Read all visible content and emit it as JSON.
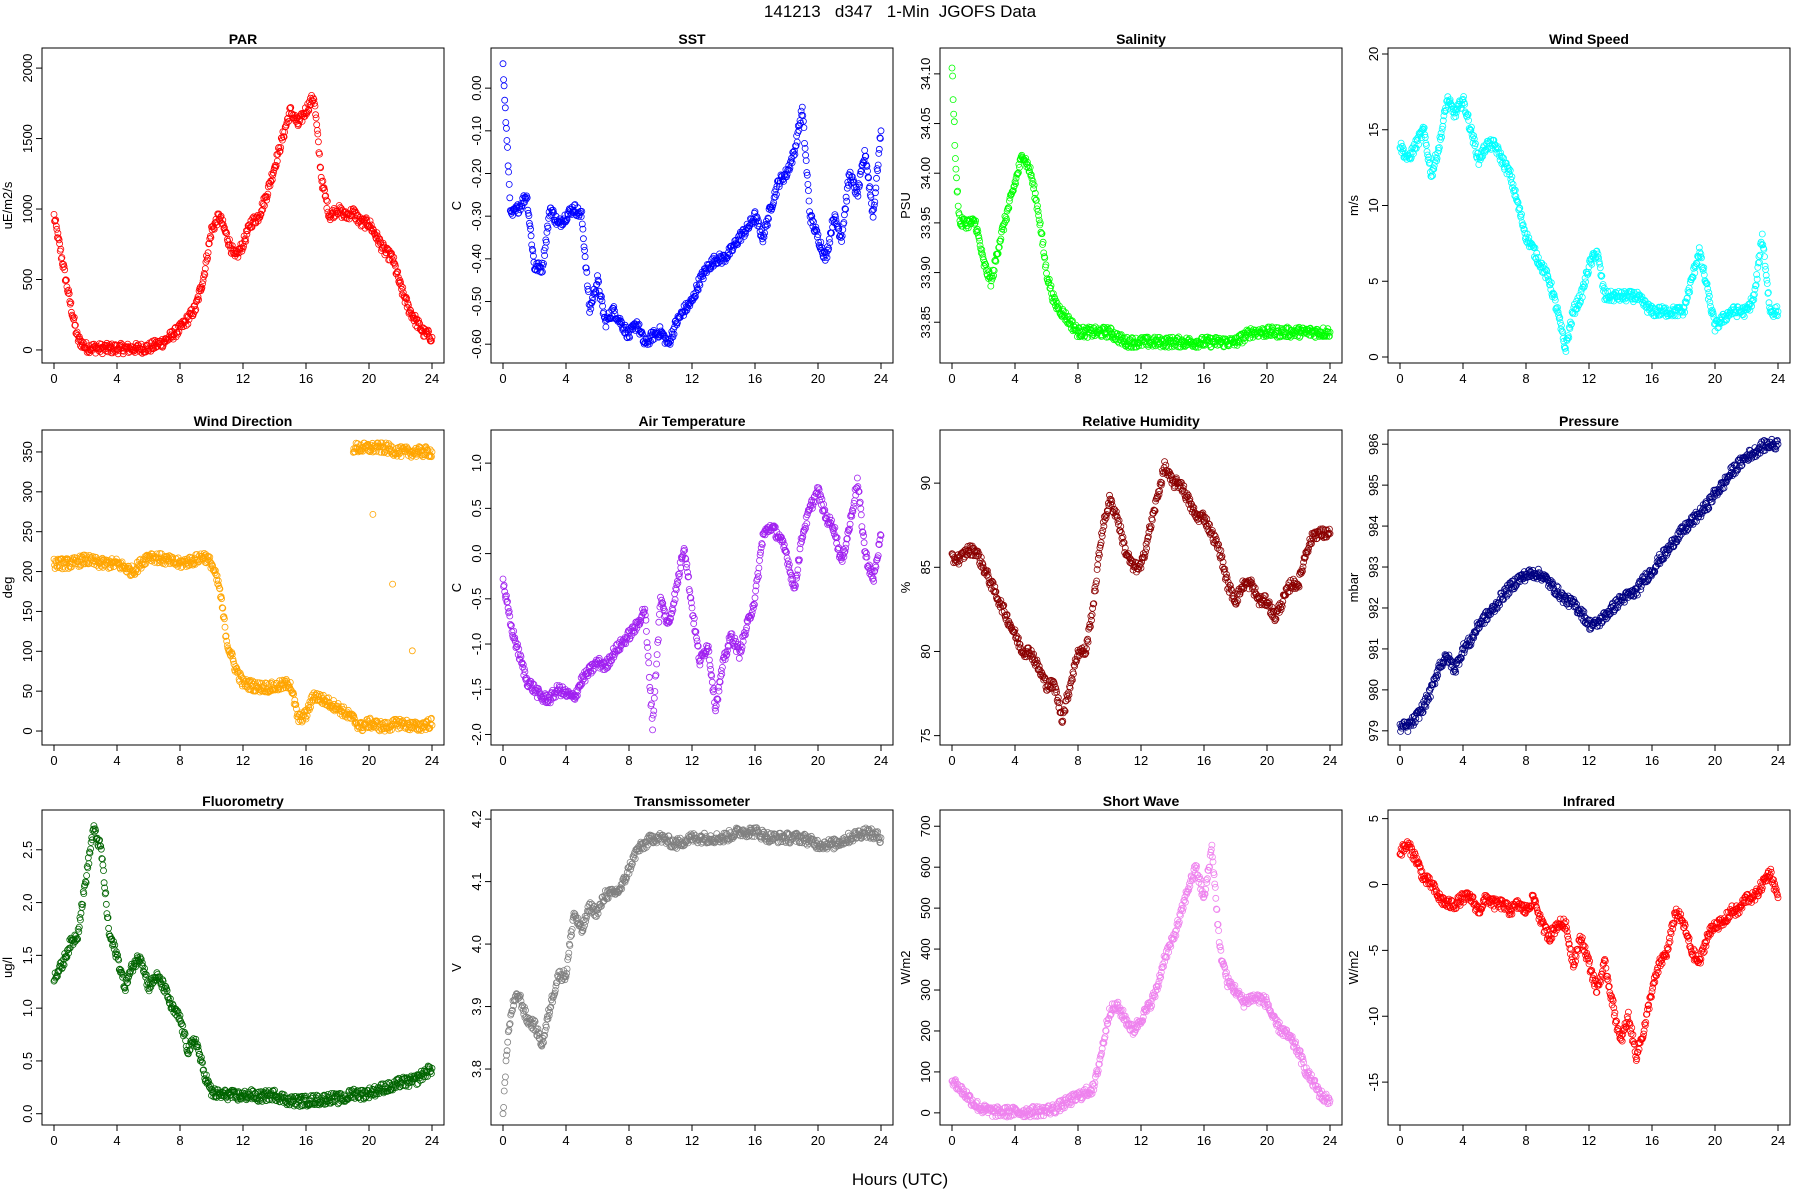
{
  "page_title": "141213   d347   1-Min  JGOFS Data",
  "xaxis_title": "Hours (UTC)",
  "chart_data": [
    {
      "type": "scatter",
      "title": "PAR",
      "ylabel": "uE/m2/s",
      "color": "#ff0000",
      "xlim": [
        0,
        24
      ],
      "ylim": [
        -50,
        2100
      ],
      "xticks": [
        0,
        4,
        8,
        12,
        16,
        20,
        24
      ],
      "yticks": [
        0,
        500,
        1000,
        1500,
        2000
      ],
      "x": [
        0,
        0.5,
        1,
        1.5,
        2,
        3,
        4,
        5,
        6,
        7,
        8,
        8.5,
        9,
        9.5,
        10,
        10.5,
        11,
        11.5,
        12,
        12.5,
        13,
        13.5,
        14,
        14.5,
        15,
        15.5,
        16,
        16.5,
        17,
        17.5,
        18,
        18.5,
        19,
        19.5,
        20,
        20.5,
        21,
        21.5,
        22,
        22.5,
        23,
        23.5,
        24
      ],
      "y": [
        950,
        650,
        350,
        80,
        20,
        10,
        10,
        10,
        15,
        60,
        150,
        220,
        300,
        520,
        850,
        950,
        800,
        650,
        750,
        900,
        950,
        1100,
        1300,
        1500,
        1700,
        1600,
        1700,
        1800,
        1200,
        950,
        1000,
        950,
        980,
        900,
        900,
        800,
        700,
        650,
        450,
        300,
        200,
        120,
        90
      ]
    },
    {
      "type": "scatter",
      "title": "SST",
      "ylabel": "C",
      "color": "#0000ff",
      "xlim": [
        0,
        24
      ],
      "ylim": [
        -0.63,
        0.08
      ],
      "xticks": [
        0,
        4,
        8,
        12,
        16,
        20,
        24
      ],
      "yticks": [
        -0.6,
        -0.5,
        -0.4,
        -0.3,
        -0.2,
        -0.1,
        0.0
      ],
      "x": [
        0,
        0.5,
        1,
        1.5,
        2,
        2.5,
        3,
        3.5,
        4,
        4.5,
        5,
        5.5,
        6,
        6.5,
        7,
        7.5,
        8,
        8.5,
        9,
        9.5,
        10,
        10.5,
        11,
        11.5,
        12,
        12.5,
        13,
        13.5,
        14,
        14.5,
        15,
        15.5,
        16,
        16.5,
        17,
        17.5,
        18,
        18.5,
        19,
        19.5,
        20,
        20.5,
        21,
        21.5,
        22,
        22.5,
        23,
        23.5,
        24
      ],
      "y": [
        0.05,
        -0.3,
        -0.28,
        -0.25,
        -0.42,
        -0.42,
        -0.28,
        -0.32,
        -0.3,
        -0.28,
        -0.3,
        -0.52,
        -0.45,
        -0.55,
        -0.52,
        -0.55,
        -0.58,
        -0.55,
        -0.6,
        -0.58,
        -0.57,
        -0.6,
        -0.55,
        -0.52,
        -0.5,
        -0.45,
        -0.42,
        -0.4,
        -0.4,
        -0.38,
        -0.35,
        -0.33,
        -0.3,
        -0.35,
        -0.28,
        -0.22,
        -0.2,
        -0.15,
        -0.05,
        -0.3,
        -0.35,
        -0.4,
        -0.3,
        -0.35,
        -0.2,
        -0.25,
        -0.15,
        -0.3,
        -0.1
      ]
    },
    {
      "type": "scatter",
      "title": "Salinity",
      "ylabel": "PSU",
      "color": "#00ff00",
      "xlim": [
        0,
        24
      ],
      "ylim": [
        33.815,
        34.12
      ],
      "xticks": [
        0,
        4,
        8,
        12,
        16,
        20,
        24
      ],
      "yticks": [
        33.85,
        33.9,
        33.95,
        34.0,
        34.05,
        34.1
      ],
      "x": [
        0,
        0.25,
        0.5,
        1,
        1.5,
        2,
        2.5,
        3,
        3.5,
        4,
        4.5,
        5,
        5.5,
        6,
        6.5,
        7,
        7.5,
        8,
        9,
        10,
        11,
        12,
        13,
        14,
        15,
        16,
        17,
        18,
        19,
        20,
        21,
        22,
        23,
        24
      ],
      "y": [
        34.11,
        34.0,
        33.95,
        33.95,
        33.95,
        33.91,
        33.89,
        33.93,
        33.96,
        33.99,
        34.02,
        34.0,
        33.96,
        33.9,
        33.87,
        33.86,
        33.85,
        33.84,
        33.84,
        33.84,
        33.83,
        33.83,
        33.83,
        33.83,
        33.83,
        33.83,
        33.83,
        33.83,
        33.84,
        33.84,
        33.84,
        33.84,
        33.84,
        33.84
      ]
    },
    {
      "type": "scatter",
      "title": "Wind Speed",
      "ylabel": "m/s",
      "color": "#00ffff",
      "xlim": [
        0,
        24
      ],
      "ylim": [
        0,
        20
      ],
      "xticks": [
        0,
        4,
        8,
        12,
        16,
        20,
        24
      ],
      "yticks": [
        0,
        5,
        10,
        15,
        20
      ],
      "x": [
        0,
        0.5,
        1,
        1.5,
        2,
        2.5,
        3,
        3.5,
        4,
        4.5,
        5,
        5.5,
        6,
        6.5,
        7,
        7.5,
        8,
        8.5,
        9,
        9.5,
        10,
        10.5,
        11,
        11.5,
        12,
        12.5,
        13,
        14,
        15,
        16,
        17,
        18,
        19,
        20,
        21,
        22,
        22.5,
        23,
        23.5,
        24
      ],
      "y": [
        14,
        13,
        14,
        15,
        12,
        14,
        17,
        16,
        17,
        15,
        13,
        14,
        14,
        13,
        12,
        10,
        8,
        7,
        6,
        5,
        3,
        0.5,
        3,
        4,
        6,
        7,
        4,
        4,
        4,
        3,
        3,
        3,
        7,
        2,
        3,
        3,
        4,
        8,
        3,
        3
      ]
    },
    {
      "type": "scatter",
      "title": "Wind Direction",
      "ylabel": "deg",
      "color": "#ffa500",
      "xlim": [
        0,
        24
      ],
      "ylim": [
        -10,
        370
      ],
      "xticks": [
        0,
        4,
        8,
        12,
        16,
        20,
        24
      ],
      "yticks": [
        0,
        50,
        100,
        150,
        200,
        250,
        300,
        350
      ],
      "x": [
        0,
        1,
        2,
        3,
        4,
        5,
        6,
        7,
        8,
        9,
        9.5,
        10,
        10.5,
        11,
        11.5,
        12,
        13,
        14,
        15,
        15.5,
        16,
        16.5,
        17,
        18,
        19,
        19.5,
        20,
        21,
        22,
        23,
        24,
        19,
        20,
        21,
        22,
        23,
        24
      ],
      "y": [
        210,
        210,
        215,
        210,
        210,
        200,
        220,
        215,
        210,
        215,
        220,
        210,
        180,
        110,
        80,
        60,
        55,
        55,
        60,
        15,
        20,
        45,
        40,
        30,
        15,
        5,
        10,
        5,
        10,
        5,
        10,
        355,
        355,
        355,
        350,
        350,
        350
      ]
    },
    {
      "type": "scatter",
      "title": "Air Temperature",
      "ylabel": "C",
      "color": "#a020f0",
      "xlim": [
        0,
        24
      ],
      "ylim": [
        -2.05,
        1.3
      ],
      "xticks": [
        0,
        4,
        8,
        12,
        16,
        20,
        24
      ],
      "yticks": [
        -2.0,
        -1.5,
        -1.0,
        -0.5,
        0.0,
        0.5,
        1.0
      ],
      "x": [
        0,
        0.5,
        1,
        1.5,
        2,
        2.5,
        3,
        3.5,
        4,
        4.5,
        5,
        5.5,
        6,
        6.5,
        7,
        7.5,
        8,
        8.5,
        9,
        9.5,
        10,
        10.5,
        11,
        11.5,
        12,
        12.5,
        13,
        13.5,
        14,
        14.5,
        15,
        15.5,
        16,
        16.5,
        17,
        17.5,
        18,
        18.5,
        19,
        19.5,
        20,
        20.5,
        21,
        21.5,
        22,
        22.5,
        23,
        23.5,
        24
      ],
      "y": [
        -0.3,
        -0.8,
        -1.1,
        -1.4,
        -1.5,
        -1.6,
        -1.6,
        -1.5,
        -1.55,
        -1.6,
        -1.4,
        -1.3,
        -1.2,
        -1.25,
        -1.1,
        -1.0,
        -0.9,
        -0.8,
        -0.6,
        -1.9,
        -0.5,
        -0.8,
        -0.4,
        0.1,
        -0.6,
        -1.2,
        -1.0,
        -1.7,
        -1.2,
        -0.9,
        -1.1,
        -0.8,
        -0.5,
        0.2,
        0.3,
        0.2,
        0.0,
        -0.4,
        0.2,
        0.5,
        0.7,
        0.4,
        0.3,
        -0.1,
        0.3,
        0.8,
        0.0,
        -0.3,
        0.2
      ]
    },
    {
      "type": "scatter",
      "title": "Relative Humidity",
      "ylabel": "%",
      "color": "#8b0000",
      "xlim": [
        0,
        24
      ],
      "ylim": [
        74.8,
        92.8
      ],
      "xticks": [
        0,
        4,
        8,
        12,
        16,
        20,
        24
      ],
      "yticks": [
        75,
        80,
        85,
        90
      ],
      "x": [
        0,
        0.5,
        1,
        1.5,
        2,
        2.5,
        3,
        3.5,
        4,
        4.5,
        5,
        5.5,
        6,
        6.5,
        7,
        7.5,
        8,
        8.5,
        9,
        9.5,
        10,
        10.5,
        11,
        11.5,
        12,
        12.5,
        13,
        13.5,
        14,
        14.5,
        15,
        15.5,
        16,
        16.5,
        17,
        17.5,
        18,
        18.5,
        19,
        19.5,
        20,
        20.5,
        21,
        21.5,
        22,
        22.5,
        23,
        23.5,
        24
      ],
      "y": [
        85.5,
        85.5,
        86,
        86,
        85,
        84,
        83,
        82,
        81,
        80,
        80,
        79,
        78,
        78,
        76,
        78,
        80,
        80,
        83,
        87,
        89,
        88,
        86,
        85,
        85,
        87,
        89,
        91,
        90,
        90,
        89,
        88,
        88,
        87,
        86,
        84,
        83,
        84,
        84,
        83,
        83,
        82,
        83,
        84,
        84,
        86,
        87,
        87,
        87
      ]
    },
    {
      "type": "scatter",
      "title": "Pressure",
      "ylabel": "mbar",
      "color": "#000080",
      "xlim": [
        0,
        24
      ],
      "ylim": [
        978.8,
        986.2
      ],
      "xticks": [
        0,
        4,
        8,
        12,
        16,
        20,
        24
      ],
      "yticks": [
        979,
        980,
        981,
        982,
        983,
        984,
        985,
        986
      ],
      "x": [
        0,
        0.5,
        1,
        1.5,
        2,
        2.5,
        3,
        3.5,
        4,
        4.5,
        5,
        5.5,
        6,
        6.5,
        7,
        7.5,
        8,
        8.5,
        9,
        9.5,
        10,
        10.5,
        11,
        11.5,
        12,
        12.5,
        13,
        13.5,
        14,
        14.5,
        15,
        15.5,
        16,
        16.5,
        17,
        17.5,
        18,
        18.5,
        19,
        19.5,
        20,
        20.5,
        21,
        21.5,
        22,
        22.5,
        23,
        23.5,
        24
      ],
      "y": [
        979.1,
        979.1,
        979.3,
        979.6,
        980.0,
        980.6,
        980.8,
        980.5,
        981.0,
        981.2,
        981.6,
        981.8,
        982.0,
        982.3,
        982.5,
        982.7,
        982.8,
        982.85,
        982.8,
        982.6,
        982.4,
        982.2,
        982.1,
        981.9,
        981.6,
        981.6,
        981.8,
        982.0,
        982.2,
        982.3,
        982.4,
        982.7,
        982.9,
        983.2,
        983.4,
        983.7,
        983.9,
        984.1,
        984.3,
        984.5,
        984.8,
        985.0,
        985.3,
        985.5,
        985.7,
        985.8,
        985.95,
        986.0,
        986.0
      ]
    },
    {
      "type": "scatter",
      "title": "Fluorometry",
      "ylabel": "ug/l",
      "color": "#006400",
      "xlim": [
        0,
        24
      ],
      "ylim": [
        -0.05,
        2.82
      ],
      "xticks": [
        0,
        4,
        8,
        12,
        16,
        20,
        24
      ],
      "yticks": [
        0.0,
        0.5,
        1.0,
        1.5,
        2.0,
        2.5
      ],
      "x": [
        0,
        0.5,
        1,
        1.5,
        2,
        2.5,
        3,
        3.5,
        4,
        4.5,
        5,
        5.5,
        6,
        6.5,
        7,
        7.5,
        8,
        8.5,
        9,
        9.5,
        10,
        10.5,
        11,
        11.5,
        12,
        12.5,
        13,
        13.5,
        14,
        14.5,
        15,
        15.5,
        16,
        16.5,
        17,
        17.5,
        18,
        18.5,
        19,
        19.5,
        20,
        20.5,
        21,
        21.5,
        22,
        22.5,
        23,
        23.5,
        24
      ],
      "y": [
        1.3,
        1.4,
        1.6,
        1.7,
        2.2,
        2.7,
        2.5,
        1.7,
        1.5,
        1.2,
        1.4,
        1.5,
        1.2,
        1.3,
        1.2,
        1.0,
        0.9,
        0.6,
        0.7,
        0.4,
        0.2,
        0.18,
        0.18,
        0.17,
        0.17,
        0.18,
        0.16,
        0.17,
        0.18,
        0.15,
        0.12,
        0.12,
        0.12,
        0.13,
        0.13,
        0.15,
        0.14,
        0.15,
        0.2,
        0.18,
        0.2,
        0.22,
        0.25,
        0.25,
        0.3,
        0.3,
        0.32,
        0.38,
        0.43
      ]
    },
    {
      "type": "scatter",
      "title": "Transmissometer",
      "ylabel": "V",
      "color": "#808080",
      "xlim": [
        0,
        24
      ],
      "ylim": [
        3.72,
        4.205
      ],
      "xticks": [
        0,
        4,
        8,
        12,
        16,
        20,
        24
      ],
      "yticks": [
        3.8,
        3.9,
        4.0,
        4.1,
        4.2
      ],
      "x": [
        0,
        0.3,
        0.6,
        1,
        1.5,
        2,
        2.5,
        3,
        3.5,
        4,
        4.5,
        5,
        5.5,
        6,
        6.5,
        7,
        7.5,
        8,
        8.5,
        9,
        9.5,
        10,
        11,
        12,
        13,
        14,
        15,
        16,
        17,
        18,
        19,
        20,
        21,
        22,
        23,
        24
      ],
      "y": [
        3.73,
        3.85,
        3.9,
        3.92,
        3.88,
        3.87,
        3.84,
        3.9,
        3.95,
        3.95,
        4.05,
        4.02,
        4.06,
        4.05,
        4.08,
        4.08,
        4.09,
        4.12,
        4.15,
        4.16,
        4.17,
        4.17,
        4.16,
        4.17,
        4.17,
        4.17,
        4.18,
        4.18,
        4.17,
        4.17,
        4.17,
        4.16,
        4.16,
        4.17,
        4.18,
        4.17
      ]
    },
    {
      "type": "scatter",
      "title": "Short Wave",
      "ylabel": "W/m2",
      "color": "#ee82ee",
      "xlim": [
        0,
        24
      ],
      "ylim": [
        -15,
        725
      ],
      "xticks": [
        0,
        4,
        8,
        12,
        16,
        20,
        24
      ],
      "yticks": [
        0,
        100,
        200,
        300,
        400,
        500,
        600,
        700
      ],
      "x": [
        0,
        0.5,
        1,
        1.5,
        2,
        2.5,
        3,
        3.5,
        4,
        4.5,
        5,
        5.5,
        6,
        6.5,
        7,
        7.5,
        8,
        8.5,
        9,
        9.5,
        10,
        10.5,
        11,
        11.5,
        12,
        12.5,
        13,
        13.5,
        14,
        14.5,
        15,
        15.5,
        16,
        16.5,
        17,
        17.5,
        18,
        18.5,
        19,
        19.5,
        20,
        20.5,
        21,
        21.5,
        22,
        22.5,
        23,
        23.5,
        24
      ],
      "y": [
        80,
        60,
        40,
        20,
        8,
        3,
        2,
        2,
        2,
        2,
        3,
        4,
        6,
        10,
        20,
        30,
        40,
        50,
        60,
        150,
        250,
        260,
        230,
        200,
        230,
        260,
        300,
        380,
        420,
        480,
        550,
        600,
        520,
        650,
        400,
        320,
        300,
        270,
        280,
        280,
        270,
        220,
        200,
        180,
        150,
        100,
        70,
        40,
        30
      ]
    },
    {
      "type": "scatter",
      "title": "Infrared",
      "ylabel": "W/m2",
      "color": "#ff0000",
      "xlim": [
        0,
        24
      ],
      "ylim": [
        -17.8,
        5.2
      ],
      "xticks": [
        0,
        4,
        8,
        12,
        16,
        20,
        24
      ],
      "yticks": [
        -15,
        -10,
        -5,
        0,
        5
      ],
      "x": [
        0,
        0.5,
        1,
        1.5,
        2,
        2.5,
        3,
        3.5,
        4,
        4.5,
        5,
        5.5,
        6,
        6.5,
        7,
        7.5,
        8,
        8.5,
        9,
        9.5,
        10,
        10.5,
        11,
        11.5,
        12,
        12.5,
        13,
        13.5,
        14,
        14.5,
        15,
        15.5,
        16,
        16.5,
        17,
        17.5,
        18,
        18.5,
        19,
        19.5,
        20,
        20.5,
        21,
        21.5,
        22,
        22.5,
        23,
        23.5,
        24
      ],
      "y": [
        2.5,
        3.0,
        2.0,
        0.5,
        0,
        -1,
        -1.5,
        -1.5,
        -1,
        -1,
        -2,
        -1,
        -1.5,
        -1.5,
        -2,
        -1.5,
        -2,
        -1,
        -3,
        -4,
        -3,
        -3,
        -6,
        -4,
        -6,
        -8,
        -6,
        -9,
        -12,
        -10,
        -13,
        -11,
        -8,
        -6,
        -5,
        -2,
        -3,
        -5,
        -6,
        -4,
        -3,
        -3,
        -2,
        -2,
        -1,
        -1,
        0,
        1,
        -1
      ]
    }
  ]
}
